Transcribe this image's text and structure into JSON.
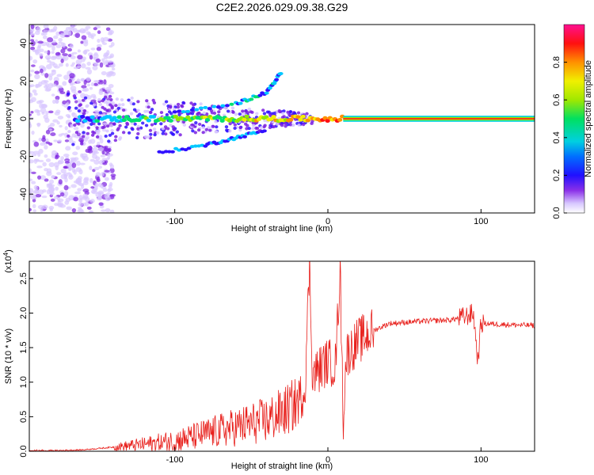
{
  "title": "C2E2.2026.029.09.38.G29",
  "chart_data": [
    {
      "type": "heatmap",
      "xlabel": "Height of straight line (km)",
      "ylabel": "Frequency (Hz)",
      "xlim": [
        -195,
        135
      ],
      "ylim": [
        -50,
        50
      ],
      "x_ticks": [
        -100,
        0,
        100
      ],
      "y_ticks": [
        -40,
        -20,
        0,
        20,
        40
      ],
      "colorbar": {
        "label": "Normalized spectral amplitude",
        "range": [
          0,
          1
        ],
        "ticks": [
          0.0,
          0.2,
          0.4,
          0.6,
          0.8
        ],
        "tick_labels": [
          "0.0",
          "0.2",
          "0.4",
          "0.6",
          "0.8"
        ],
        "colormap": [
          "#ffffff",
          "#d8c8ff",
          "#7a20e0",
          "#3010ff",
          "#00c8ff",
          "#00e070",
          "#90e800",
          "#f0f000",
          "#ff9000",
          "#ff1010",
          "#ff0090"
        ]
      },
      "features": [
        {
          "description": "carrier line",
          "y": 0,
          "x_range": [
            10,
            135
          ],
          "amplitude": 1.0
        },
        {
          "description": "noisy band",
          "x_range": [
            -195,
            -140
          ],
          "y_range": [
            -50,
            50
          ],
          "amplitude": 0.25
        },
        {
          "description": "upper branch",
          "points": [
            [
              -100,
              3
            ],
            [
              -60,
              8
            ],
            [
              -40,
              14
            ],
            [
              -30,
              25
            ]
          ],
          "amplitude": 0.45
        },
        {
          "description": "lower branch",
          "points": [
            [
              -110,
              -18
            ],
            [
              -80,
              -14
            ],
            [
              -60,
              -10
            ],
            [
              -40,
              -6
            ]
          ],
          "amplitude": 0.4
        }
      ]
    },
    {
      "type": "line",
      "xlabel": "Height of straight line (km)",
      "ylabel": "SNR (10 * v/v)",
      "y_scale_label": "(x10",
      "y_scale_exp": "4",
      "xlim": [
        -195,
        135
      ],
      "ylim": [
        0,
        2.75
      ],
      "x_ticks": [
        -100,
        0,
        100
      ],
      "y_ticks": [
        0.0,
        0.5,
        1.0,
        1.5,
        2.0,
        2.5
      ],
      "y_tick_labels": [
        "0.0",
        "0.5",
        "1.0",
        "1.5",
        "2.0",
        "2.5"
      ],
      "color": "#e8201c",
      "series": [
        {
          "x": [
            -195,
            -160,
            -140,
            -120,
            -100,
            -90,
            -80,
            -70,
            -60,
            -50,
            -40,
            -30,
            -20,
            -15,
            -12,
            -10,
            -5,
            0,
            5,
            8,
            10,
            12,
            20,
            30,
            40,
            60,
            80,
            90,
            95,
            98,
            100,
            110,
            120,
            135
          ],
          "values": [
            0.0,
            0.02,
            0.06,
            0.1,
            0.15,
            0.2,
            0.25,
            0.3,
            0.35,
            0.4,
            0.45,
            0.55,
            0.7,
            0.9,
            2.7,
            1.1,
            1.2,
            1.3,
            1.25,
            2.65,
            0.45,
            1.4,
            1.6,
            1.75,
            1.85,
            1.88,
            1.9,
            1.95,
            2.0,
            1.3,
            1.85,
            1.84,
            1.83,
            1.82
          ]
        }
      ]
    }
  ]
}
